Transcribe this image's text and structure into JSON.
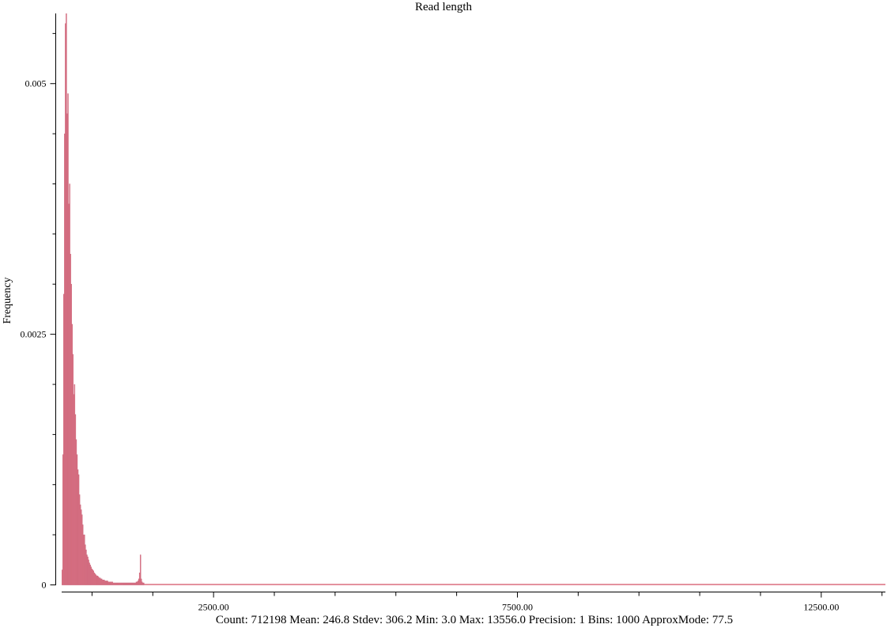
{
  "chart_data": {
    "type": "histogram",
    "title": "Read length",
    "ylabel": "Frequency",
    "footer": "Count: 712198 Mean: 246.8 Stdev: 306.2 Min: 3.0 Max: 13556.0 Precision: 1 Bins: 1000 ApproxMode: 77.5",
    "color": "#dc6f7f",
    "edge_color": "#c9687f",
    "xlim": [
      3,
      13556
    ],
    "ylim": [
      0,
      0.0057
    ],
    "xticks": [
      {
        "value": 2500,
        "label": "2500.00"
      },
      {
        "value": 7500,
        "label": "7500.00"
      },
      {
        "value": 12500,
        "label": "12500.00"
      }
    ],
    "xminor_ticks": [
      500,
      1500,
      3500,
      4500,
      5500,
      6500,
      8500,
      9500,
      10500,
      11500,
      13500
    ],
    "yticks": [
      0,
      0.0025,
      0.005
    ],
    "yminor_ticks": [
      0.0005,
      0.001,
      0.0015,
      0.002,
      0.003,
      0.0035,
      0.004,
      0.0045,
      0.0055
    ],
    "bins": [
      3,
      16.6,
      30.1,
      43.7,
      57.2,
      70.8,
      84.3,
      97.9,
      111.4,
      125.0,
      138.5,
      152.1,
      165.6,
      179.2,
      192.7,
      206.3,
      219.8,
      233.4,
      246.9,
      260.5,
      274.1,
      287.6,
      301.2,
      314.7,
      328.3,
      341.8,
      355.4,
      368.9,
      382.5,
      396.0,
      409.6,
      423.1,
      436.7,
      450.2,
      463.8,
      477.4,
      490.9,
      504.5,
      518.0,
      531.6,
      545.1,
      558.7,
      572.2,
      585.8,
      599.3,
      612.9,
      626.4,
      640.0,
      653.5,
      667.1,
      680.7,
      694.2,
      707.8,
      721.3,
      734.9,
      748.4,
      762.0,
      775.5,
      789.1,
      802.6,
      816.2,
      829.7,
      843.3,
      856.8,
      870.4,
      884.0,
      897.5,
      911.1,
      924.6,
      938.2,
      951.7,
      965.3,
      978.8,
      992.4,
      1005.9,
      1019.5,
      1033.0,
      1046.6,
      1060.1,
      1073.7,
      1087.2,
      1100.8,
      1114.3,
      1127.9,
      1141.5,
      1155.0,
      1168.6,
      1182.1,
      1195.7,
      1209.2,
      1222.8,
      1236.3,
      1249.9,
      1263.4,
      1277.0,
      1290.5,
      1304.1,
      1317.6,
      1331.2,
      1344.7,
      1358.3
    ],
    "values": [
      0.00015,
      0.0013,
      0.0029,
      0.0045,
      0.0056,
      0.0057,
      0.0047,
      0.0049,
      0.0038,
      0.004,
      0.0033,
      0.003,
      0.0026,
      0.0023,
      0.0019,
      0.002,
      0.0017,
      0.00145,
      0.0013,
      0.00115,
      0.0011,
      0.0009,
      0.0008,
      0.00075,
      0.0007,
      0.0006,
      0.0005,
      0.0005,
      0.0004,
      0.00035,
      0.0003,
      0.00028,
      0.00025,
      0.00022,
      0.0002,
      0.00018,
      0.00016,
      0.00015,
      0.00014,
      0.00012,
      0.00011,
      0.0001,
      9e-05,
      9e-05,
      8e-05,
      7e-05,
      7e-05,
      6e-05,
      6e-05,
      5e-05,
      5e-05,
      5e-05,
      4e-05,
      4e-05,
      4e-05,
      4e-05,
      3e-05,
      3e-05,
      3e-05,
      3e-05,
      3e-05,
      3e-05,
      2e-05,
      2e-05,
      2e-05,
      2e-05,
      2e-05,
      2e-05,
      2e-05,
      2e-05,
      2e-05,
      2e-05,
      2e-05,
      2e-05,
      2e-05,
      2e-05,
      2e-05,
      2e-05,
      2e-05,
      2e-05,
      2e-05,
      2e-05,
      2e-05,
      2e-05,
      2e-05,
      2e-05,
      2e-05,
      2e-05,
      2e-05,
      2e-05,
      3e-05,
      3e-05,
      4e-05,
      6e-05,
      0.00012,
      0.0003,
      6e-05,
      3e-05,
      2e-05,
      2e-05
    ]
  }
}
